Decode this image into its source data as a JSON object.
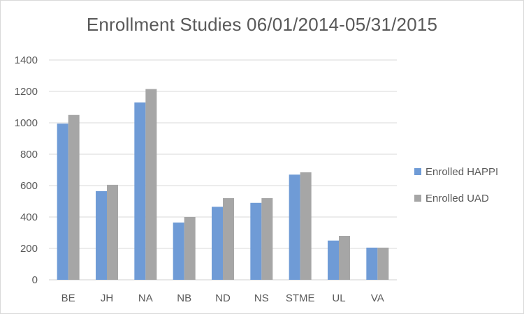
{
  "chart_data": {
    "type": "bar",
    "title": "Enrollment Studies 06/01/2014-05/31/2015",
    "xlabel": "",
    "ylabel": "",
    "categories": [
      "BE",
      "JH",
      "NA",
      "NB",
      "ND",
      "NS",
      "STME",
      "UL",
      "VA"
    ],
    "series": [
      {
        "name": "Enrolled HAPPI",
        "color": "#6f9bd6",
        "values": [
          995,
          565,
          1130,
          365,
          465,
          490,
          670,
          250,
          205
        ]
      },
      {
        "name": "Enrolled UAD",
        "color": "#a6a6a6",
        "values": [
          1050,
          605,
          1215,
          400,
          520,
          520,
          685,
          280,
          205
        ]
      }
    ],
    "ylim": [
      0,
      1400
    ],
    "yticks": [
      0,
      200,
      400,
      600,
      800,
      1000,
      1200,
      1400
    ],
    "grid": true,
    "legend_position": "right"
  }
}
